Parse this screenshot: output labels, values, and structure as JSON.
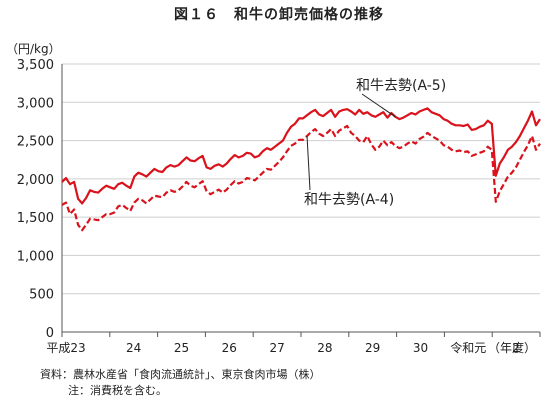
{
  "title": "図１６　和牛の卸売価格の推移",
  "unit_label": "（円/kg）",
  "notes": {
    "source": "資料：農林水産省「食肉流通統計」、東京食肉市場（株）",
    "note": "注：消費税を含む。"
  },
  "chart_data": {
    "type": "line",
    "title": "図１６　和牛の卸売価格の推移",
    "ylabel": "（円/kg）",
    "xlabel": "（年度）",
    "ylim": [
      0,
      3500
    ],
    "yticks": [
      0,
      500,
      1000,
      1500,
      2000,
      2500,
      3000,
      3500
    ],
    "ytick_labels": [
      "0",
      "500",
      "1,000",
      "1,500",
      "2,000",
      "2,500",
      "3,000",
      "3,500"
    ],
    "x_period_labels": [
      "平成23",
      "24",
      "25",
      "26",
      "27",
      "28",
      "29",
      "30",
      "令和元",
      "2",
      "（年度）"
    ],
    "x_period_count": 10,
    "points_per_period": 12,
    "grid": true,
    "series": [
      {
        "name": "和牛去勢(A-5)",
        "color": "#d9121b",
        "style": "solid",
        "values": [
          1960,
          2010,
          1930,
          1960,
          1740,
          1680,
          1750,
          1850,
          1830,
          1820,
          1870,
          1910,
          1890,
          1870,
          1930,
          1950,
          1910,
          1880,
          2030,
          2080,
          2060,
          2030,
          2080,
          2130,
          2100,
          2090,
          2150,
          2180,
          2160,
          2180,
          2230,
          2280,
          2240,
          2230,
          2270,
          2300,
          2150,
          2130,
          2170,
          2190,
          2160,
          2200,
          2260,
          2310,
          2280,
          2300,
          2340,
          2330,
          2280,
          2300,
          2360,
          2400,
          2380,
          2420,
          2460,
          2500,
          2600,
          2680,
          2720,
          2790,
          2790,
          2830,
          2870,
          2900,
          2840,
          2820,
          2860,
          2900,
          2810,
          2880,
          2900,
          2910,
          2880,
          2840,
          2900,
          2850,
          2870,
          2830,
          2810,
          2840,
          2870,
          2800,
          2860,
          2810,
          2780,
          2800,
          2830,
          2860,
          2840,
          2880,
          2900,
          2920,
          2870,
          2850,
          2830,
          2780,
          2760,
          2720,
          2700,
          2700,
          2690,
          2710,
          2640,
          2650,
          2680,
          2700,
          2760,
          2720,
          2040,
          2200,
          2280,
          2380,
          2420,
          2480,
          2560,
          2660,
          2760,
          2880,
          2700,
          2780
        ]
      },
      {
        "name": "和牛去勢(A-4)",
        "color": "#d9121b",
        "style": "dashed",
        "values": [
          1660,
          1690,
          1540,
          1600,
          1400,
          1330,
          1400,
          1480,
          1470,
          1460,
          1500,
          1540,
          1540,
          1560,
          1640,
          1660,
          1620,
          1580,
          1690,
          1740,
          1720,
          1680,
          1730,
          1780,
          1770,
          1760,
          1820,
          1850,
          1830,
          1850,
          1900,
          1960,
          1910,
          1890,
          1930,
          1970,
          1840,
          1800,
          1830,
          1860,
          1820,
          1860,
          1920,
          1970,
          1940,
          1960,
          2010,
          2000,
          1980,
          2030,
          2080,
          2130,
          2120,
          2170,
          2220,
          2280,
          2360,
          2430,
          2460,
          2510,
          2510,
          2560,
          2610,
          2650,
          2590,
          2560,
          2600,
          2650,
          2560,
          2630,
          2660,
          2690,
          2600,
          2560,
          2500,
          2480,
          2560,
          2450,
          2380,
          2420,
          2500,
          2440,
          2480,
          2430,
          2400,
          2420,
          2460,
          2490,
          2460,
          2520,
          2550,
          2600,
          2560,
          2530,
          2500,
          2440,
          2420,
          2380,
          2360,
          2370,
          2350,
          2360,
          2300,
          2320,
          2340,
          2360,
          2420,
          2380,
          1700,
          1840,
          1930,
          2030,
          2080,
          2150,
          2250,
          2350,
          2440,
          2560,
          2380,
          2460
        ]
      }
    ],
    "annotations": [
      {
        "text": "和牛去勢(A-5)",
        "series": 0
      },
      {
        "text": "和牛去勢(A-4)",
        "series": 1
      }
    ]
  }
}
